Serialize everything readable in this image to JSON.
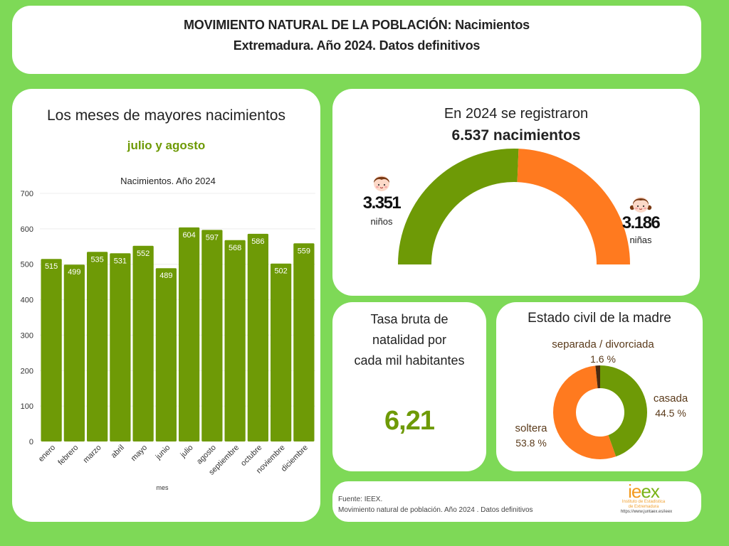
{
  "header": {
    "title_line1": "MOVIMIENTO NATURAL DE LA POBLACIÓN: Nacimientos",
    "title_line2": "Extremadura. Año 2024. Datos definitivos"
  },
  "bar_panel": {
    "title": "Los meses de mayores nacimientos",
    "highlight": "julio y agosto"
  },
  "gauge_panel": {
    "line1": "En 2024 se registraron",
    "line2": "6.537 nacimientos",
    "boys": {
      "value": "3.351",
      "label": "niños",
      "icon": "boy-face-icon"
    },
    "girls": {
      "value": "3.186",
      "label": "niñas",
      "icon": "girl-face-icon"
    }
  },
  "rate_panel": {
    "label": "Tasa bruta de natalidad por cada mil habitantes",
    "label_lines": [
      "Tasa bruta de",
      "natalidad por",
      "cada mil habitantes"
    ],
    "value": "6,21"
  },
  "civil_panel": {
    "title": "Estado civil de la madre"
  },
  "footer": {
    "source": "Fuente: IEEX.",
    "description": "Movimiento natural de población. Año 2024 . Datos definitivos",
    "logo_text": "ieex",
    "logo_subtitle_1": "Instituto de Estadística",
    "logo_subtitle_2": "de Extremadura",
    "logo_url": "https://www.juntaex.es/ieex"
  },
  "colors": {
    "background": "#7ed957",
    "green": "#6e9a06",
    "orange": "#ff7a1f",
    "dark_brown": "#4a2a10",
    "label_brown": "#5a3a1a"
  },
  "chart_data": [
    {
      "type": "bar",
      "title": "Nacimientos. Año 2024",
      "xlabel": "mes",
      "ylabel": "",
      "categories": [
        "enero",
        "febrero",
        "marzo",
        "abril",
        "mayo",
        "junio",
        "julio",
        "agosto",
        "septiembre",
        "octubre",
        "noviembre",
        "diciembre"
      ],
      "values": [
        515,
        499,
        535,
        531,
        552,
        489,
        604,
        597,
        568,
        586,
        502,
        559
      ],
      "ylim": [
        0,
        700
      ],
      "yticks": [
        0,
        100,
        200,
        300,
        400,
        500,
        600,
        700
      ],
      "grid": true,
      "data_labels": true,
      "color": "#6e9a06"
    },
    {
      "type": "pie",
      "subtype": "half-donut",
      "title": "En 2024 se registraron 6.537 nacimientos",
      "categories": [
        "niños",
        "niñas"
      ],
      "values": [
        3351,
        3186
      ],
      "colors": [
        "#6e9a06",
        "#ff7a1f"
      ]
    },
    {
      "type": "pie",
      "subtype": "donut",
      "title": "Estado civil de la madre",
      "categories": [
        "casada",
        "soltera",
        "separada / divorciada"
      ],
      "values": [
        44.5,
        53.8,
        1.6
      ],
      "labels": [
        "44.5 %",
        "53.8 %",
        "1.6 %"
      ],
      "colors": [
        "#6e9a06",
        "#ff7a1f",
        "#4a2a10"
      ]
    }
  ]
}
